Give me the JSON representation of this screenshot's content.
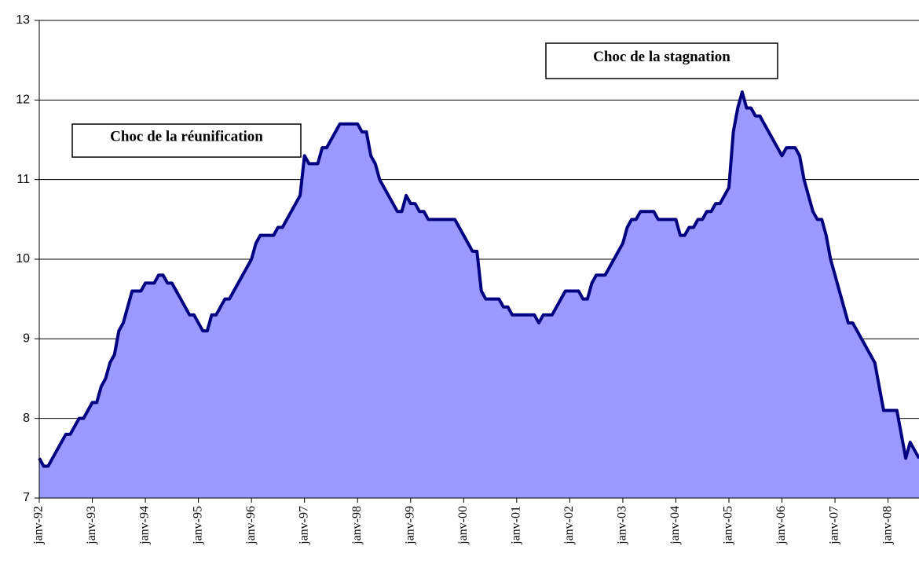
{
  "chart_data": {
    "type": "area",
    "categories": [
      "janv-92",
      null,
      null,
      null,
      null,
      null,
      null,
      null,
      null,
      null,
      null,
      null,
      "janv-93",
      null,
      null,
      null,
      null,
      null,
      null,
      null,
      null,
      null,
      null,
      null,
      "janv-94",
      null,
      null,
      null,
      null,
      null,
      null,
      null,
      null,
      null,
      null,
      null,
      "janv-95",
      null,
      null,
      null,
      null,
      null,
      null,
      null,
      null,
      null,
      null,
      null,
      "janv-96",
      null,
      null,
      null,
      null,
      null,
      null,
      null,
      null,
      null,
      null,
      null,
      "janv-97",
      null,
      null,
      null,
      null,
      null,
      null,
      null,
      null,
      null,
      null,
      null,
      "janv-98",
      null,
      null,
      null,
      null,
      null,
      null,
      null,
      null,
      null,
      null,
      null,
      "janv-99",
      null,
      null,
      null,
      null,
      null,
      null,
      null,
      null,
      null,
      null,
      null,
      "janv-00",
      null,
      null,
      null,
      null,
      null,
      null,
      null,
      null,
      null,
      null,
      null,
      "janv-01",
      null,
      null,
      null,
      null,
      null,
      null,
      null,
      null,
      null,
      null,
      null,
      "janv-02",
      null,
      null,
      null,
      null,
      null,
      null,
      null,
      null,
      null,
      null,
      null,
      "janv-03",
      null,
      null,
      null,
      null,
      null,
      null,
      null,
      null,
      null,
      null,
      null,
      "janv-04",
      null,
      null,
      null,
      null,
      null,
      null,
      null,
      null,
      null,
      null,
      null,
      "janv-05",
      null,
      null,
      null,
      null,
      null,
      null,
      null,
      null,
      null,
      null,
      null,
      "janv-06",
      null,
      null,
      null,
      null,
      null,
      null,
      null,
      null,
      null,
      null,
      null,
      "janv-07",
      null,
      null,
      null,
      null,
      null,
      null,
      null,
      null,
      null,
      null,
      null,
      "janv-08",
      null,
      null,
      null,
      null,
      null,
      null,
      null
    ],
    "values": [
      7.5,
      7.4,
      7.4,
      7.5,
      7.6,
      7.7,
      7.8,
      7.8,
      7.9,
      8.0,
      8.0,
      8.1,
      8.2,
      8.2,
      8.4,
      8.5,
      8.7,
      8.8,
      9.1,
      9.2,
      9.4,
      9.6,
      9.6,
      9.6,
      9.7,
      9.7,
      9.7,
      9.8,
      9.8,
      9.7,
      9.7,
      9.6,
      9.5,
      9.4,
      9.3,
      9.3,
      9.2,
      9.1,
      9.1,
      9.3,
      9.3,
      9.4,
      9.5,
      9.5,
      9.6,
      9.7,
      9.8,
      9.9,
      10.0,
      10.2,
      10.3,
      10.3,
      10.3,
      10.3,
      10.4,
      10.4,
      10.5,
      10.6,
      10.7,
      10.8,
      11.3,
      11.2,
      11.2,
      11.2,
      11.4,
      11.4,
      11.5,
      11.6,
      11.7,
      11.7,
      11.7,
      11.7,
      11.7,
      11.6,
      11.6,
      11.3,
      11.2,
      11.0,
      10.9,
      10.8,
      10.7,
      10.6,
      10.6,
      10.8,
      10.7,
      10.7,
      10.6,
      10.6,
      10.5,
      10.5,
      10.5,
      10.5,
      10.5,
      10.5,
      10.5,
      10.4,
      10.3,
      10.2,
      10.1,
      10.1,
      9.6,
      9.5,
      9.5,
      9.5,
      9.5,
      9.4,
      9.4,
      9.3,
      9.3,
      9.3,
      9.3,
      9.3,
      9.3,
      9.2,
      9.3,
      9.3,
      9.3,
      9.4,
      9.5,
      9.6,
      9.6,
      9.6,
      9.6,
      9.5,
      9.5,
      9.7,
      9.8,
      9.8,
      9.8,
      9.9,
      10.0,
      10.1,
      10.2,
      10.4,
      10.5,
      10.5,
      10.6,
      10.6,
      10.6,
      10.6,
      10.5,
      10.5,
      10.5,
      10.5,
      10.5,
      10.3,
      10.3,
      10.4,
      10.4,
      10.5,
      10.5,
      10.6,
      10.6,
      10.7,
      10.7,
      10.8,
      10.9,
      11.6,
      11.9,
      12.1,
      11.9,
      11.9,
      11.8,
      11.8,
      11.7,
      11.6,
      11.5,
      11.4,
      11.3,
      11.4,
      11.4,
      11.4,
      11.3,
      11.0,
      10.8,
      10.6,
      10.5,
      10.5,
      10.3,
      10.0,
      9.8,
      9.6,
      9.4,
      9.2,
      9.2,
      9.1,
      9.0,
      8.9,
      8.8,
      8.7,
      8.4,
      8.1,
      8.1,
      8.1,
      8.1,
      7.8,
      7.5,
      7.7,
      7.6,
      7.5
    ],
    "color": "#9999ff",
    "line_color": "#000080",
    "ylim": [
      7,
      13
    ],
    "yticks": [
      7,
      8,
      9,
      10,
      11,
      12,
      13
    ],
    "grid": true,
    "annotations": [
      "Choc de la réunification",
      "Choc de la stagnation"
    ]
  }
}
